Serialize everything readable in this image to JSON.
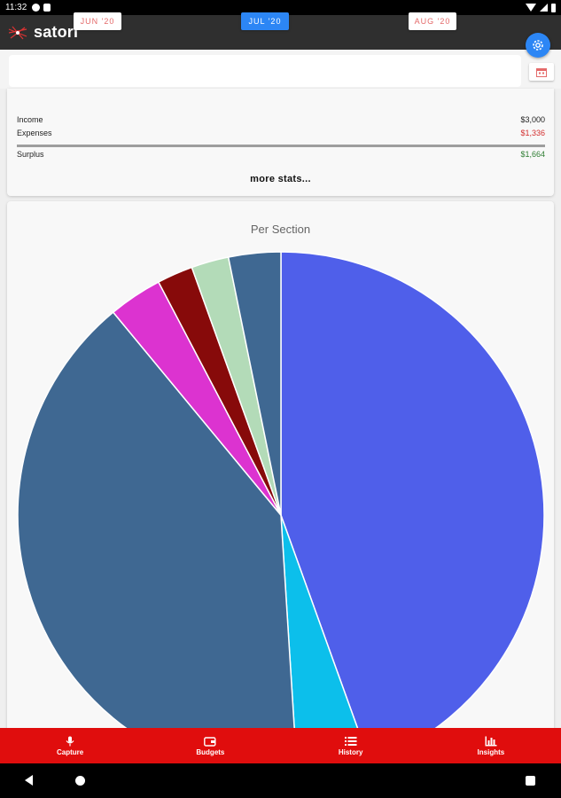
{
  "status_bar": {
    "time": "11:32"
  },
  "app": {
    "title": "satori"
  },
  "month_nav": {
    "prev": "JUN '20",
    "current": "JUL '20",
    "next": "AUG '20"
  },
  "stats": {
    "income_label": "Income",
    "income_value": "$3,000",
    "expenses_label": "Expenses",
    "expenses_value": "$1,336",
    "surplus_label": "Surplus",
    "surplus_value": "$1,664",
    "more_label": "more stats..."
  },
  "colors": {
    "accent": "#2c86f5",
    "nav": "#e00d0d",
    "expense": "#d32f2f",
    "surplus": "#2e7d32"
  },
  "chart_data": {
    "type": "pie",
    "title": "Per Section",
    "series": [
      {
        "value": 44.5,
        "color": "#4f5fea"
      },
      {
        "value": 4.5,
        "color": "#0cbfeb"
      },
      {
        "value": 40.0,
        "color": "#3f6892"
      },
      {
        "value": 3.3,
        "color": "#dc33d0"
      },
      {
        "value": 2.2,
        "color": "#870a0a"
      },
      {
        "value": 2.3,
        "color": "#b3dbb8"
      },
      {
        "value": 3.2,
        "color": "#3f6892"
      }
    ]
  },
  "bottom_nav": {
    "items": [
      {
        "label": "Capture",
        "icon": "mic-icon"
      },
      {
        "label": "Budgets",
        "icon": "wallet-icon"
      },
      {
        "label": "History",
        "icon": "list-icon"
      },
      {
        "label": "Insights",
        "icon": "bar-chart-icon"
      }
    ]
  }
}
